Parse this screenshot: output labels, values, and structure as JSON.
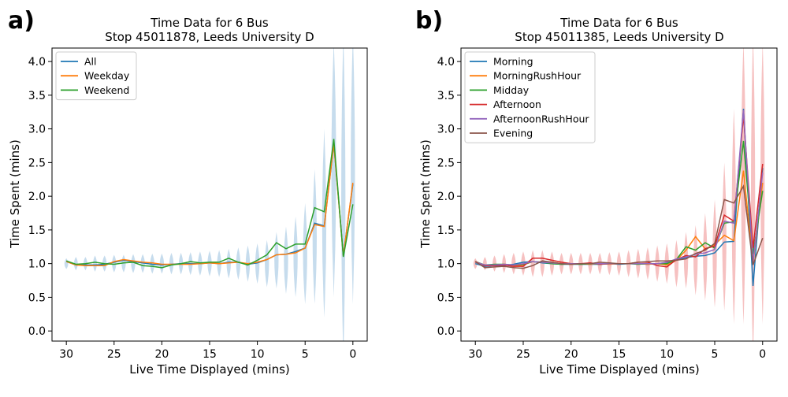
{
  "chart_data": [
    {
      "panel_label": "a)",
      "type": "line",
      "title": "Time Data for 6 Bus\nStop 45011878, Leeds University D",
      "xlabel": "Live Time Displayed (mins)",
      "ylabel": "Time Spent (mins)",
      "xlim": [
        31.5,
        -1.5
      ],
      "ylim": [
        -0.15,
        4.2
      ],
      "x_inverted": true,
      "xticks": [
        30,
        25,
        20,
        15,
        10,
        5,
        0
      ],
      "yticks": [
        "0.0",
        "0.5",
        "1.0",
        "1.5",
        "2.0",
        "2.5",
        "3.0",
        "3.5",
        "4.0"
      ],
      "legend_position": "upper-left",
      "violin_color": "#bcd6ea",
      "series": [
        {
          "name": "All",
          "color": "#1f77b4",
          "x": [
            30,
            29,
            28,
            27,
            26,
            25,
            24,
            23,
            22,
            21,
            20,
            19,
            18,
            17,
            16,
            15,
            14,
            13,
            12,
            11,
            10,
            9,
            8,
            7,
            6,
            5,
            4,
            3,
            2,
            1,
            0
          ],
          "y": [
            1.03,
            0.98,
            0.98,
            0.98,
            0.99,
            1.02,
            1.05,
            1.03,
            1.01,
            0.99,
            0.98,
            0.99,
            1.0,
            1.0,
            1.0,
            1.01,
            1.0,
            1.02,
            1.02,
            0.99,
            1.01,
            1.06,
            1.13,
            1.14,
            1.18,
            1.23,
            1.6,
            1.56,
            2.78,
            1.12,
            2.18
          ]
        },
        {
          "name": "Weekday",
          "color": "#ff7f0e",
          "x": [
            30,
            29,
            28,
            27,
            26,
            25,
            24,
            23,
            22,
            21,
            20,
            19,
            18,
            17,
            16,
            15,
            14,
            13,
            12,
            11,
            10,
            9,
            8,
            7,
            6,
            5,
            4,
            3,
            2,
            1,
            0
          ],
          "y": [
            1.03,
            0.98,
            0.97,
            0.97,
            0.97,
            1.03,
            1.06,
            1.04,
            1.02,
            1.01,
            0.99,
            0.99,
            0.99,
            0.99,
            1.0,
            1.01,
            1.0,
            1.01,
            1.02,
            1.0,
            1.02,
            1.06,
            1.13,
            1.14,
            1.16,
            1.23,
            1.58,
            1.55,
            2.78,
            1.11,
            2.2
          ]
        },
        {
          "name": "Weekend",
          "color": "#2ca02c",
          "x": [
            30,
            29,
            28,
            27,
            26,
            25,
            24,
            23,
            22,
            21,
            20,
            19,
            18,
            17,
            16,
            15,
            14,
            13,
            12,
            11,
            10,
            9,
            8,
            7,
            6,
            5,
            4,
            3,
            2,
            1,
            0
          ],
          "y": [
            1.04,
            0.99,
            1.0,
            1.02,
            1.0,
            0.99,
            1.01,
            1.02,
            0.97,
            0.96,
            0.94,
            0.98,
            1.0,
            1.03,
            1.01,
            1.02,
            1.02,
            1.08,
            1.02,
            0.98,
            1.05,
            1.13,
            1.31,
            1.22,
            1.29,
            1.29,
            1.83,
            1.77,
            2.85,
            1.1,
            1.88
          ]
        }
      ],
      "violins": {
        "x": [
          30,
          29,
          28,
          27,
          26,
          25,
          24,
          23,
          22,
          21,
          20,
          19,
          18,
          17,
          16,
          15,
          14,
          13,
          12,
          11,
          10,
          9,
          8,
          7,
          6,
          5,
          4,
          3,
          2,
          1,
          0
        ],
        "center": [
          1.0,
          1.0,
          1.0,
          1.0,
          1.0,
          1.0,
          1.0,
          1.0,
          1.0,
          1.0,
          1.0,
          1.0,
          1.0,
          1.0,
          1.0,
          1.0,
          1.0,
          1.0,
          1.0,
          1.0,
          1.0,
          1.0,
          1.05,
          1.05,
          1.1,
          1.15,
          1.4,
          1.6,
          2.4,
          2.0,
          2.4
        ],
        "half_height": [
          0.08,
          0.1,
          0.1,
          0.12,
          0.12,
          0.13,
          0.13,
          0.14,
          0.14,
          0.15,
          0.15,
          0.16,
          0.16,
          0.17,
          0.18,
          0.19,
          0.2,
          0.22,
          0.24,
          0.27,
          0.3,
          0.35,
          0.42,
          0.5,
          0.6,
          0.75,
          1.0,
          1.4,
          1.9,
          2.4,
          2.0
        ],
        "half_width": [
          0.2,
          0.2,
          0.2,
          0.2,
          0.22,
          0.22,
          0.22,
          0.22,
          0.22,
          0.22,
          0.22,
          0.22,
          0.22,
          0.22,
          0.22,
          0.22,
          0.22,
          0.22,
          0.22,
          0.22,
          0.22,
          0.22,
          0.22,
          0.22,
          0.22,
          0.22,
          0.22,
          0.22,
          0.25,
          0.22,
          0.22
        ]
      }
    },
    {
      "panel_label": "b)",
      "type": "line",
      "title": "Time Data for 6 Bus\nStop 45011385, Leeds University D",
      "xlabel": "Live Time Displayed (mins)",
      "ylabel": "Time Spent (mins)",
      "xlim": [
        31.5,
        -1.5
      ],
      "ylim": [
        -0.15,
        4.2
      ],
      "x_inverted": true,
      "xticks": [
        30,
        25,
        20,
        15,
        10,
        5,
        0
      ],
      "yticks": [
        "0.0",
        "0.5",
        "1.0",
        "1.5",
        "2.0",
        "2.5",
        "3.0",
        "3.5",
        "4.0"
      ],
      "legend_position": "upper-left",
      "violin_color": "#f4b6b6",
      "series": [
        {
          "name": "Morning",
          "color": "#1f77b4",
          "x": [
            30,
            29,
            28,
            27,
            26,
            25,
            24,
            23,
            22,
            21,
            20,
            19,
            18,
            17,
            16,
            15,
            14,
            13,
            12,
            11,
            10,
            9,
            8,
            7,
            6,
            5,
            4,
            3,
            2,
            1,
            0
          ],
          "y": [
            1.0,
            0.96,
            0.97,
            0.97,
            0.99,
            1.02,
            1.03,
            1.01,
            1.0,
            0.99,
            0.99,
            0.99,
            0.99,
            0.99,
            1.0,
            0.99,
            1.0,
            1.0,
            0.99,
            1.0,
            1.01,
            1.05,
            1.09,
            1.11,
            1.12,
            1.16,
            1.32,
            1.33,
            3.3,
            0.67,
            2.42
          ]
        },
        {
          "name": "MorningRushHour",
          "color": "#ff7f0e",
          "x": [
            30,
            29,
            28,
            27,
            26,
            25,
            24,
            23,
            22,
            21,
            20,
            19,
            18,
            17,
            16,
            15,
            14,
            13,
            12,
            11,
            10,
            9,
            8,
            7,
            6,
            5,
            4,
            3,
            2,
            1,
            0
          ],
          "y": [
            1.02,
            0.98,
            0.98,
            0.99,
            0.97,
            0.98,
            1.03,
            1.02,
            1.02,
            1.0,
            0.99,
            1.0,
            0.99,
            1.0,
            0.99,
            1.0,
            1.0,
            1.0,
            0.99,
            1.0,
            0.98,
            1.05,
            1.2,
            1.4,
            1.22,
            1.28,
            1.42,
            1.34,
            2.38,
            1.0,
            2.2
          ]
        },
        {
          "name": "Midday",
          "color": "#2ca02c",
          "x": [
            30,
            29,
            28,
            27,
            26,
            25,
            24,
            23,
            22,
            21,
            20,
            19,
            18,
            17,
            16,
            15,
            14,
            13,
            12,
            11,
            10,
            9,
            8,
            7,
            6,
            5,
            4,
            3,
            2,
            1,
            0
          ],
          "y": [
            1.03,
            0.98,
            0.99,
            0.99,
            0.98,
            0.99,
            1.03,
            1.02,
            1.0,
            0.99,
            1.0,
            0.99,
            1.0,
            0.99,
            1.0,
            1.0,
            1.0,
            0.99,
            1.0,
            1.0,
            1.0,
            1.06,
            1.25,
            1.2,
            1.31,
            1.23,
            1.6,
            1.62,
            2.82,
            1.14,
            2.08
          ]
        },
        {
          "name": "Afternoon",
          "color": "#d62728",
          "x": [
            30,
            29,
            28,
            27,
            26,
            25,
            24,
            23,
            22,
            21,
            20,
            19,
            18,
            17,
            16,
            15,
            14,
            13,
            12,
            11,
            10,
            9,
            8,
            7,
            6,
            5,
            4,
            3,
            2,
            1,
            0
          ],
          "y": [
            1.03,
            0.97,
            0.97,
            0.98,
            0.96,
            0.96,
            1.08,
            1.08,
            1.05,
            1.02,
            1.0,
            1.0,
            1.01,
            0.99,
            1.0,
            1.0,
            1.0,
            1.02,
            1.02,
            0.97,
            0.95,
            1.06,
            1.12,
            1.1,
            1.22,
            1.26,
            1.72,
            1.63,
            3.2,
            1.23,
            2.48
          ]
        },
        {
          "name": "AfternoonRushHour",
          "color": "#9467bd",
          "x": [
            30,
            29,
            28,
            27,
            26,
            25,
            24,
            23,
            22,
            21,
            20,
            19,
            18,
            17,
            16,
            15,
            14,
            13,
            12,
            11,
            10,
            9,
            8,
            7,
            6,
            5,
            4,
            3,
            2,
            1,
            0
          ],
          "y": [
            1.02,
            0.98,
            0.98,
            0.99,
            0.98,
            1.0,
            1.03,
            1.02,
            1.01,
            1.0,
            1.0,
            1.0,
            1.0,
            1.0,
            1.0,
            1.0,
            1.0,
            1.0,
            1.0,
            1.0,
            1.02,
            1.07,
            1.1,
            1.14,
            1.16,
            1.21,
            1.63,
            1.6,
            3.28,
            1.01,
            2.35
          ]
        },
        {
          "name": "Evening",
          "color": "#8c564b",
          "x": [
            30,
            29,
            28,
            27,
            26,
            25,
            24,
            23,
            22,
            21,
            20,
            19,
            18,
            17,
            16,
            15,
            14,
            13,
            12,
            11,
            10,
            9,
            8,
            7,
            6,
            5,
            4,
            3,
            2,
            1,
            0
          ],
          "y": [
            1.03,
            0.94,
            0.95,
            0.96,
            0.94,
            0.93,
            0.97,
            1.04,
            1.02,
            1.0,
            0.99,
            1.0,
            1.0,
            1.02,
            1.01,
            1.0,
            1.0,
            1.02,
            1.03,
            1.04,
            1.04,
            1.05,
            1.07,
            1.15,
            1.2,
            1.3,
            1.95,
            1.9,
            2.15,
            0.98,
            1.38
          ]
        }
      ],
      "violins": {
        "x": [
          30,
          29,
          28,
          27,
          26,
          25,
          24,
          23,
          22,
          21,
          20,
          19,
          18,
          17,
          16,
          15,
          14,
          13,
          12,
          11,
          10,
          9,
          8,
          7,
          6,
          5,
          4,
          3,
          2,
          1,
          0
        ],
        "center": [
          1.0,
          1.0,
          1.0,
          1.0,
          1.0,
          1.0,
          1.0,
          1.0,
          1.0,
          1.0,
          1.0,
          1.0,
          1.0,
          1.0,
          1.0,
          1.0,
          1.0,
          1.0,
          1.0,
          1.0,
          1.0,
          1.0,
          1.05,
          1.05,
          1.1,
          1.15,
          1.4,
          1.7,
          2.2,
          2.0,
          2.2
        ],
        "half_height": [
          0.08,
          0.1,
          0.12,
          0.14,
          0.16,
          0.18,
          0.2,
          0.2,
          0.18,
          0.16,
          0.16,
          0.16,
          0.16,
          0.16,
          0.17,
          0.18,
          0.2,
          0.22,
          0.24,
          0.27,
          0.3,
          0.35,
          0.42,
          0.52,
          0.65,
          0.8,
          1.1,
          1.6,
          2.1,
          2.4,
          2.1
        ],
        "half_width": [
          0.2,
          0.2,
          0.2,
          0.2,
          0.22,
          0.22,
          0.22,
          0.22,
          0.22,
          0.22,
          0.22,
          0.22,
          0.22,
          0.22,
          0.22,
          0.22,
          0.22,
          0.22,
          0.22,
          0.22,
          0.22,
          0.22,
          0.22,
          0.22,
          0.22,
          0.22,
          0.22,
          0.22,
          0.25,
          0.22,
          0.22
        ]
      }
    }
  ]
}
